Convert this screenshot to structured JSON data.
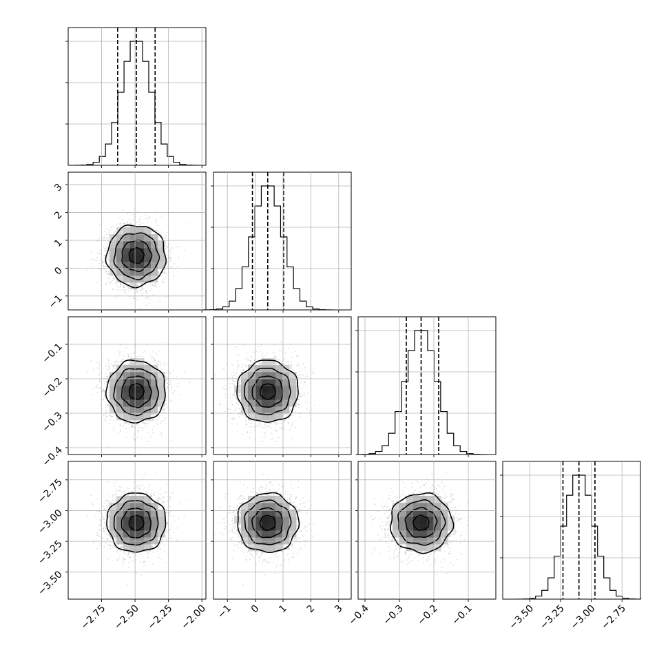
{
  "chart_data": {
    "type": "corner",
    "parameters": [
      {
        "mean": -2.49,
        "sd": 0.11,
        "quantiles": [
          -2.63,
          -2.49,
          -2.35
        ],
        "range": [
          -3.0,
          -1.97
        ],
        "ticks": [
          -2.75,
          -2.5,
          -2.25,
          -2.0
        ],
        "tick_labels": [
          "−2.75",
          "−2.50",
          "−2.25",
          "−2.00"
        ]
      },
      {
        "mean": 0.45,
        "sd": 0.55,
        "quantiles": [
          -0.1,
          0.45,
          1.02
        ],
        "range": [
          -1.5,
          3.45
        ],
        "ticks": [
          -1,
          0,
          1,
          2,
          3
        ],
        "tick_labels": [
          "−1",
          "0",
          "1",
          "2",
          "3"
        ]
      },
      {
        "mean": -0.237,
        "sd": 0.045,
        "quantiles": [
          -0.28,
          -0.237,
          -0.186
        ],
        "range": [
          -0.42,
          -0.02
        ],
        "ticks": [
          -0.4,
          -0.3,
          -0.2,
          -0.1
        ],
        "tick_labels": [
          "−0.4",
          "−0.3",
          "−0.2",
          "−0.1"
        ]
      },
      {
        "mean": -3.1,
        "sd": 0.12,
        "quantiles": [
          -3.23,
          -3.1,
          -2.97
        ],
        "range": [
          -3.72,
          -2.6
        ],
        "ticks": [
          -3.5,
          -3.25,
          -3.0,
          -2.75
        ],
        "tick_labels": [
          "−3.50",
          "−3.25",
          "−3.00",
          "−2.75"
        ]
      }
    ],
    "diagonal": "1D histograms with dashed lines at the 16th, 50th and 84th percentiles",
    "off_diagonal": "2D density: scatter points, greyscale histogram, contour lines",
    "contour_levels_sigma": [
      0.5,
      1.0,
      1.5,
      2.0
    ],
    "grid": true,
    "colors": {
      "line": "#000000",
      "grid": "#b0b0b0",
      "points": "#666666"
    }
  }
}
